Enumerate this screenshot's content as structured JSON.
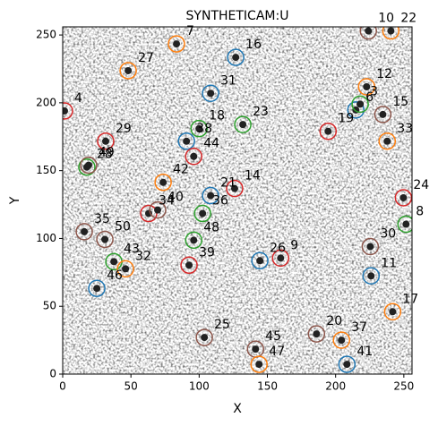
{
  "chart_data": {
    "type": "scatter",
    "title": "SYNTHETICAM:U",
    "xlabel": "X",
    "ylabel": "Y",
    "xlim": [
      0,
      256
    ],
    "ylim": [
      0,
      256
    ],
    "xticks": [
      0,
      50,
      100,
      150,
      200,
      250
    ],
    "yticks": [
      0,
      50,
      100,
      150,
      200,
      250
    ],
    "sources": [
      {
        "label": "7",
        "color": "#ff7f0e",
        "x": 83.4,
        "y": 243.4
      },
      {
        "label": "10",
        "color": "#8c564b",
        "x": 224,
        "y": 253
      },
      {
        "label": "22",
        "color": "#ff7f0e",
        "x": 240.5,
        "y": 253
      },
      {
        "label": "16",
        "color": "#1f77b4",
        "x": 126.8,
        "y": 233.5
      },
      {
        "label": "27",
        "color": "#ff7f0e",
        "x": 48,
        "y": 223.7
      },
      {
        "label": "31",
        "color": "#1f77b4",
        "x": 108.4,
        "y": 207
      },
      {
        "label": "12",
        "color": "#ff7f0e",
        "x": 222.7,
        "y": 211.8
      },
      {
        "label": "4",
        "color": "#d62728",
        "x": 1.3,
        "y": 194
      },
      {
        "label": "6",
        "color": "#1f77b4",
        "x": 214.8,
        "y": 194.7
      },
      {
        "label": "3",
        "color": "#2ca02c",
        "x": 218,
        "y": 199
      },
      {
        "label": "15",
        "color": "#8c564b",
        "x": 234.6,
        "y": 191.4
      },
      {
        "label": "19",
        "color": "#d62728",
        "x": 194.5,
        "y": 179
      },
      {
        "label": "33",
        "color": "#ff7f0e",
        "x": 237.8,
        "y": 171.7
      },
      {
        "label": "18",
        "color": "#2ca02c",
        "x": 99.9,
        "y": 181
      },
      {
        "label": "23",
        "color": "#2ca02c",
        "x": 132,
        "y": 184
      },
      {
        "label": "29",
        "color": "#d62728",
        "x": 31.5,
        "y": 171.7
      },
      {
        "label": "38",
        "color": "#1f77b4",
        "x": 90.7,
        "y": 171.7
      },
      {
        "label": "44",
        "color": "#d62728",
        "x": 96,
        "y": 160.5
      },
      {
        "label": "28",
        "color": "#2ca02c",
        "x": 17.7,
        "y": 152.6
      },
      {
        "label": "49",
        "color": "#8c564b",
        "x": 19,
        "y": 154
      },
      {
        "label": "42",
        "color": "#ff7f0e",
        "x": 73.6,
        "y": 141.4
      },
      {
        "label": "21",
        "color": "#1f77b4",
        "x": 108.4,
        "y": 131.6
      },
      {
        "label": "14",
        "color": "#d62728",
        "x": 126,
        "y": 136.8
      },
      {
        "label": "36",
        "color": "#2ca02c",
        "x": 102.5,
        "y": 118.4
      },
      {
        "label": "34",
        "color": "#d62728",
        "x": 63,
        "y": 118.4
      },
      {
        "label": "40",
        "color": "#8c564b",
        "x": 69.6,
        "y": 121
      },
      {
        "label": "24",
        "color": "#d62728",
        "x": 249.7,
        "y": 130
      },
      {
        "label": "8",
        "color": "#2ca02c",
        "x": 251.6,
        "y": 110.5
      },
      {
        "label": "35",
        "color": "#8c564b",
        "x": 15.8,
        "y": 105
      },
      {
        "label": "50",
        "color": "#8c564b",
        "x": 30.9,
        "y": 99.3
      },
      {
        "label": "48",
        "color": "#2ca02c",
        "x": 96,
        "y": 98.7
      },
      {
        "label": "30",
        "color": "#8c564b",
        "x": 225.4,
        "y": 94
      },
      {
        "label": "43",
        "color": "#2ca02c",
        "x": 37.5,
        "y": 82.9
      },
      {
        "label": "32",
        "color": "#ff7f0e",
        "x": 46,
        "y": 77.6
      },
      {
        "label": "39",
        "color": "#d62728",
        "x": 92.6,
        "y": 80.3
      },
      {
        "label": "26",
        "color": "#1f77b4",
        "x": 144.5,
        "y": 83.6
      },
      {
        "label": "9",
        "color": "#d62728",
        "x": 159.7,
        "y": 85.5
      },
      {
        "label": "11",
        "color": "#1f77b4",
        "x": 226,
        "y": 72.4
      },
      {
        "label": "46",
        "color": "#1f77b4",
        "x": 25,
        "y": 63.2
      },
      {
        "label": "17",
        "color": "#ff7f0e",
        "x": 241.8,
        "y": 46
      },
      {
        "label": "25",
        "color": "#8c564b",
        "x": 103.8,
        "y": 27
      },
      {
        "label": "20",
        "color": "#8c564b",
        "x": 186,
        "y": 29.6
      },
      {
        "label": "45",
        "color": "#8c564b",
        "x": 141.3,
        "y": 18.4
      },
      {
        "label": "37",
        "color": "#ff7f0e",
        "x": 204.3,
        "y": 25
      },
      {
        "label": "47",
        "color": "#ff7f0e",
        "x": 143.9,
        "y": 7.2
      },
      {
        "label": "41",
        "color": "#1f77b4",
        "x": 208.3,
        "y": 7.2
      }
    ]
  }
}
